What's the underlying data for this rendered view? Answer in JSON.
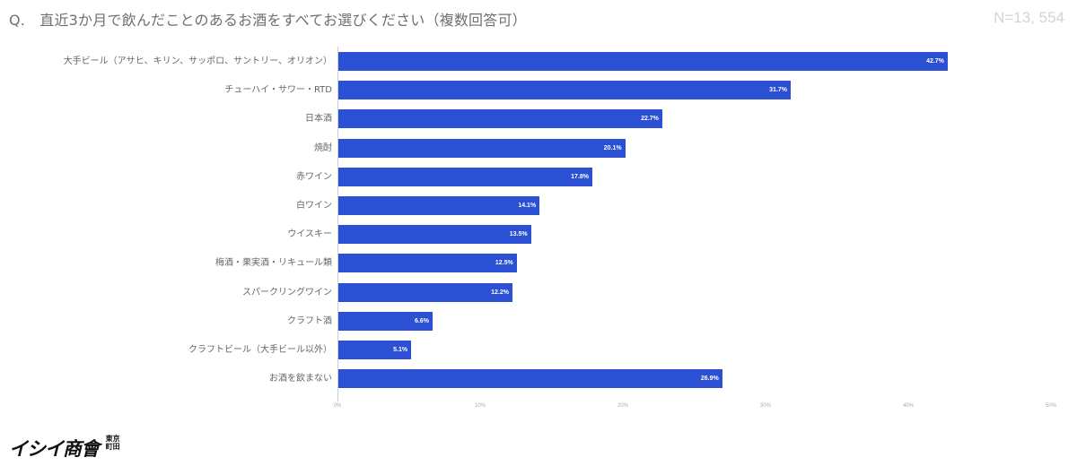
{
  "header": {
    "title": "Q.　直近3か月で飲んだことのあるお酒をすべてお選びください（複数回答可）",
    "sample_size": "N=13, 554"
  },
  "logo": {
    "main": "イシイ商會",
    "sub": "東京町田"
  },
  "colors": {
    "bar": "#2b50d3",
    "label": "#666666",
    "axis": "#c9cde0"
  },
  "chart_data": {
    "type": "bar",
    "orientation": "horizontal",
    "title": "Q.　直近3か月で飲んだことのあるお酒をすべてお選びください（複数回答可）",
    "xlabel": "",
    "ylabel": "",
    "xlim": [
      0,
      50
    ],
    "grid": false,
    "legend": null,
    "x_ticks": [
      "0%",
      "10%",
      "20%",
      "30%",
      "40%",
      "50%"
    ],
    "categories": [
      "大手ビール（アサヒ、キリン、サッポロ、サントリー、オリオン）",
      "チューハイ・サワー・RTD",
      "日本酒",
      "焼酎",
      "赤ワイン",
      "白ワイン",
      "ウイスキー",
      "梅酒・果実酒・リキュール類",
      "スパークリングワイン",
      "クラフト酒",
      "クラフトビール（大手ビール以外）",
      "お酒を飲まない"
    ],
    "values": [
      42.7,
      31.7,
      22.7,
      20.1,
      17.8,
      14.1,
      13.5,
      12.5,
      12.2,
      6.6,
      5.1,
      26.9
    ],
    "value_labels": [
      "42.7%",
      "31.7%",
      "22.7%",
      "20.1%",
      "17.8%",
      "14.1%",
      "13.5%",
      "12.5%",
      "12.2%",
      "6.6%",
      "5.1%",
      "26.9%"
    ],
    "annotation": "N=13, 554"
  }
}
